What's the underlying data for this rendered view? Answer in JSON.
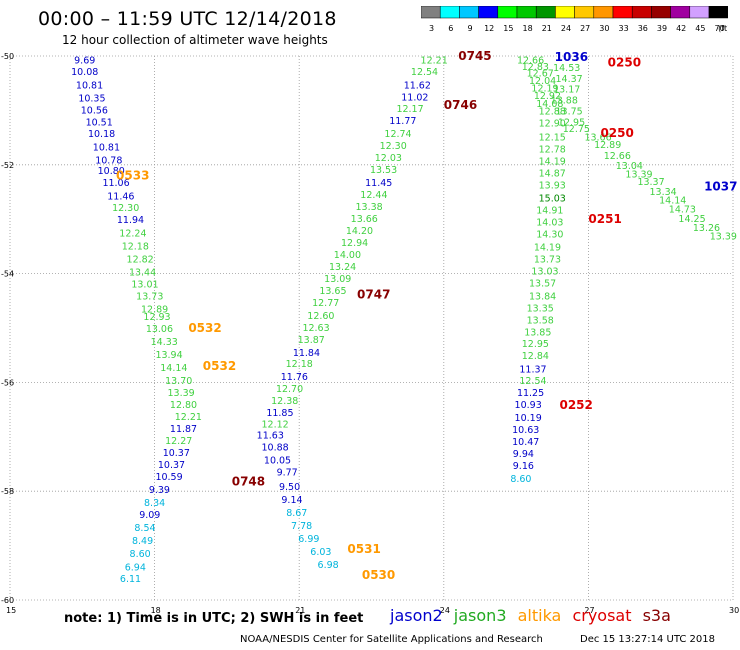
{
  "header": {
    "title": "00:00 – 11:59 UTC 12/14/2018",
    "subtitle": "12 hour collection of altimeter wave heights"
  },
  "colorbar": {
    "labels": [
      "3",
      "6",
      "9",
      "12",
      "15",
      "18",
      "21",
      "24",
      "27",
      "30",
      "33",
      "36",
      "39",
      "42",
      "45",
      "70",
      "(ft)"
    ],
    "colors": [
      "#808080",
      "#00ffff",
      "#00c8ff",
      "#0000ff",
      "#00ff00",
      "#00c800",
      "#009600",
      "#ffff00",
      "#ffc800",
      "#ff9600",
      "#ff0000",
      "#c80000",
      "#960000",
      "#a000a0",
      "#d2a0ff",
      "#000000"
    ]
  },
  "axes": {
    "lon_ticks": [
      "15",
      "18",
      "21",
      "24",
      "27",
      "30"
    ],
    "lat_ticks": [
      "-50",
      "-52",
      "-54",
      "-56",
      "-58",
      "-60"
    ],
    "lon_range": [
      15,
      30
    ],
    "lat_range": [
      -60,
      -50
    ]
  },
  "satellites": {
    "jason2": {
      "name": "jason2",
      "color": "#0000cc"
    },
    "jason3": {
      "name": "jason3",
      "color": "#22aa22"
    },
    "altika": {
      "name": "altika",
      "color": "#ff9900"
    },
    "cryosat": {
      "name": "cryosat",
      "color": "#dd0000"
    },
    "s3a": {
      "name": "s3a",
      "color": "#880000"
    }
  },
  "value_colors": {
    "cyan": "#00b4dc",
    "blue": "#0000c8",
    "green": "#40d040",
    "darkgreen": "#008800"
  },
  "tracks": [
    {
      "id": "t1",
      "points": [
        {
          "lon": 16.55,
          "lat": -50.06,
          "v": "9.69",
          "c": "blue"
        },
        {
          "lon": 16.55,
          "lat": -50.28,
          "v": "10.08",
          "c": "blue"
        },
        {
          "lon": 16.65,
          "lat": -50.52,
          "v": "10.81",
          "c": "blue"
        },
        {
          "lon": 16.7,
          "lat": -50.76,
          "v": "10.35",
          "c": "blue"
        },
        {
          "lon": 16.75,
          "lat": -50.98,
          "v": "10.56",
          "c": "blue"
        },
        {
          "lon": 16.85,
          "lat": -51.2,
          "v": "10.51",
          "c": "blue"
        },
        {
          "lon": 16.9,
          "lat": -51.42,
          "v": "10.18",
          "c": "blue"
        },
        {
          "lon": 17.0,
          "lat": -51.66,
          "v": "10.81",
          "c": "blue"
        },
        {
          "lon": 17.05,
          "lat": -51.9,
          "v": "10.78",
          "c": "blue"
        },
        {
          "lon": 17.1,
          "lat": -52.1,
          "v": "10.80",
          "c": "blue"
        },
        {
          "lon": 17.2,
          "lat": -52.32,
          "v": "11.06",
          "c": "blue"
        },
        {
          "lon": 17.3,
          "lat": -52.56,
          "v": "11.46",
          "c": "blue"
        },
        {
          "lon": 17.4,
          "lat": -52.78,
          "v": "12.30",
          "c": "green"
        },
        {
          "lon": 17.5,
          "lat": -53.0,
          "v": "11.94",
          "c": "blue"
        },
        {
          "lon": 17.55,
          "lat": -53.24,
          "v": "12.24",
          "c": "green"
        },
        {
          "lon": 17.6,
          "lat": -53.48,
          "v": "12.18",
          "c": "green"
        },
        {
          "lon": 17.7,
          "lat": -53.72,
          "v": "12.82",
          "c": "green"
        },
        {
          "lon": 17.75,
          "lat": -53.96,
          "v": "13.44",
          "c": "green"
        },
        {
          "lon": 17.8,
          "lat": -54.18,
          "v": "13.01",
          "c": "green"
        },
        {
          "lon": 17.9,
          "lat": -54.4,
          "v": "13.73",
          "c": "green"
        },
        {
          "lon": 18.0,
          "lat": -54.64,
          "v": "12.89",
          "c": "green"
        },
        {
          "lon": 18.05,
          "lat": -54.78,
          "v": "12.93",
          "c": "green"
        },
        {
          "lon": 18.1,
          "lat": -55.0,
          "v": "13.06",
          "c": "green"
        },
        {
          "lon": 18.2,
          "lat": -55.24,
          "v": "14.33",
          "c": "green"
        },
        {
          "lon": 18.3,
          "lat": -55.48,
          "v": "13.94",
          "c": "green"
        },
        {
          "lon": 18.4,
          "lat": -55.72,
          "v": "14.14",
          "c": "green"
        },
        {
          "lon": 18.5,
          "lat": -55.96,
          "v": "13.70",
          "c": "green"
        },
        {
          "lon": 18.55,
          "lat": -56.18,
          "v": "13.39",
          "c": "green"
        },
        {
          "lon": 18.6,
          "lat": -56.4,
          "v": "12.80",
          "c": "green"
        },
        {
          "lon": 18.7,
          "lat": -56.62,
          "v": "12.21",
          "c": "green"
        },
        {
          "lon": 18.6,
          "lat": -56.84,
          "v": "11.87",
          "c": "blue"
        },
        {
          "lon": 18.5,
          "lat": -57.06,
          "v": "12.27",
          "c": "green"
        },
        {
          "lon": 18.45,
          "lat": -57.28,
          "v": "10.37",
          "c": "blue"
        },
        {
          "lon": 18.35,
          "lat": -57.5,
          "v": "10.37",
          "c": "blue"
        },
        {
          "lon": 18.3,
          "lat": -57.72,
          "v": "10.59",
          "c": "blue"
        },
        {
          "lon": 18.1,
          "lat": -57.96,
          "v": "9.39",
          "c": "blue"
        },
        {
          "lon": 18.0,
          "lat": -58.2,
          "v": "8.34",
          "c": "cyan"
        },
        {
          "lon": 17.9,
          "lat": -58.42,
          "v": "9.09",
          "c": "blue"
        },
        {
          "lon": 17.8,
          "lat": -58.66,
          "v": "8.54",
          "c": "cyan"
        },
        {
          "lon": 17.75,
          "lat": -58.9,
          "v": "8.49",
          "c": "cyan"
        },
        {
          "lon": 17.7,
          "lat": -59.14,
          "v": "8.60",
          "c": "cyan"
        },
        {
          "lon": 17.6,
          "lat": -59.38,
          "v": "6.94",
          "c": "cyan"
        },
        {
          "lon": 17.5,
          "lat": -59.6,
          "v": "6.11",
          "c": "cyan"
        }
      ]
    },
    {
      "id": "t2",
      "points": [
        {
          "lon": 23.8,
          "lat": -50.06,
          "v": "12.21",
          "c": "green"
        },
        {
          "lon": 23.6,
          "lat": -50.28,
          "v": "12.54",
          "c": "green"
        },
        {
          "lon": 23.45,
          "lat": -50.52,
          "v": "11.62",
          "c": "blue"
        },
        {
          "lon": 23.4,
          "lat": -50.74,
          "v": "11.02",
          "c": "blue"
        },
        {
          "lon": 23.3,
          "lat": -50.96,
          "v": "12.17",
          "c": "green"
        },
        {
          "lon": 23.15,
          "lat": -51.18,
          "v": "11.77",
          "c": "blue"
        },
        {
          "lon": 23.05,
          "lat": -51.42,
          "v": "12.74",
          "c": "green"
        },
        {
          "lon": 22.95,
          "lat": -51.64,
          "v": "12.30",
          "c": "green"
        },
        {
          "lon": 22.85,
          "lat": -51.86,
          "v": "12.03",
          "c": "green"
        },
        {
          "lon": 22.75,
          "lat": -52.08,
          "v": "13.53",
          "c": "green"
        },
        {
          "lon": 22.65,
          "lat": -52.32,
          "v": "11.45",
          "c": "blue"
        },
        {
          "lon": 22.55,
          "lat": -52.54,
          "v": "12.44",
          "c": "green"
        },
        {
          "lon": 22.45,
          "lat": -52.76,
          "v": "13.38",
          "c": "green"
        },
        {
          "lon": 22.35,
          "lat": -52.98,
          "v": "13.66",
          "c": "green"
        },
        {
          "lon": 22.25,
          "lat": -53.2,
          "v": "14.20",
          "c": "green"
        },
        {
          "lon": 22.15,
          "lat": -53.42,
          "v": "12.94",
          "c": "green"
        },
        {
          "lon": 22.0,
          "lat": -53.64,
          "v": "14.00",
          "c": "green"
        },
        {
          "lon": 21.9,
          "lat": -53.86,
          "v": "13.24",
          "c": "green"
        },
        {
          "lon": 21.8,
          "lat": -54.08,
          "v": "13.09",
          "c": "green"
        },
        {
          "lon": 21.7,
          "lat": -54.3,
          "v": "13.65",
          "c": "green"
        },
        {
          "lon": 21.55,
          "lat": -54.52,
          "v": "12.77",
          "c": "green"
        },
        {
          "lon": 21.45,
          "lat": -54.76,
          "v": "12.60",
          "c": "green"
        },
        {
          "lon": 21.35,
          "lat": -54.98,
          "v": "12.63",
          "c": "green"
        },
        {
          "lon": 21.25,
          "lat": -55.2,
          "v": "13.87",
          "c": "green"
        },
        {
          "lon": 21.15,
          "lat": -55.44,
          "v": "11.84",
          "c": "blue"
        },
        {
          "lon": 21.0,
          "lat": -55.64,
          "v": "12.18",
          "c": "green"
        },
        {
          "lon": 20.9,
          "lat": -55.88,
          "v": "11.76",
          "c": "blue"
        },
        {
          "lon": 20.8,
          "lat": -56.1,
          "v": "12.70",
          "c": "green"
        },
        {
          "lon": 20.7,
          "lat": -56.32,
          "v": "12.38",
          "c": "green"
        },
        {
          "lon": 20.6,
          "lat": -56.54,
          "v": "11.85",
          "c": "blue"
        },
        {
          "lon": 20.5,
          "lat": -56.76,
          "v": "12.12",
          "c": "green"
        },
        {
          "lon": 20.4,
          "lat": -56.96,
          "v": "11.63",
          "c": "blue"
        },
        {
          "lon": 20.5,
          "lat": -57.18,
          "v": "10.88",
          "c": "blue"
        },
        {
          "lon": 20.55,
          "lat": -57.42,
          "v": "10.05",
          "c": "blue"
        },
        {
          "lon": 20.75,
          "lat": -57.64,
          "v": "9.77",
          "c": "blue"
        },
        {
          "lon": 20.8,
          "lat": -57.9,
          "v": "9.50",
          "c": "blue"
        },
        {
          "lon": 20.85,
          "lat": -58.14,
          "v": "9.14",
          "c": "blue"
        },
        {
          "lon": 20.95,
          "lat": -58.38,
          "v": "8.67",
          "c": "cyan"
        },
        {
          "lon": 21.05,
          "lat": -58.62,
          "v": "7.78",
          "c": "cyan"
        },
        {
          "lon": 21.2,
          "lat": -58.86,
          "v": "6.99",
          "c": "cyan"
        },
        {
          "lon": 21.45,
          "lat": -59.1,
          "v": "6.03",
          "c": "cyan"
        },
        {
          "lon": 21.6,
          "lat": -59.34,
          "v": "6.98",
          "c": "cyan"
        }
      ]
    },
    {
      "id": "t3",
      "points": [
        {
          "lon": 25.8,
          "lat": -50.06,
          "v": "12.66",
          "c": "green"
        },
        {
          "lon": 25.9,
          "lat": -50.18,
          "v": "12.83",
          "c": "green"
        },
        {
          "lon": 26.0,
          "lat": -50.3,
          "v": "12.67",
          "c": "green"
        },
        {
          "lon": 26.05,
          "lat": -50.44,
          "v": "12.04",
          "c": "green"
        },
        {
          "lon": 26.1,
          "lat": -50.58,
          "v": "12.19",
          "c": "green"
        },
        {
          "lon": 26.15,
          "lat": -50.72,
          "v": "12.92",
          "c": "green"
        },
        {
          "lon": 26.2,
          "lat": -50.86,
          "v": "14.08",
          "c": "green"
        },
        {
          "lon": 26.25,
          "lat": -51.0,
          "v": "12.88",
          "c": "green"
        },
        {
          "lon": 26.25,
          "lat": -51.22,
          "v": "12.90",
          "c": "green"
        },
        {
          "lon": 26.25,
          "lat": -51.48,
          "v": "12.15",
          "c": "green"
        },
        {
          "lon": 26.25,
          "lat": -51.7,
          "v": "12.78",
          "c": "green"
        },
        {
          "lon": 26.25,
          "lat": -51.92,
          "v": "14.19",
          "c": "green"
        },
        {
          "lon": 26.25,
          "lat": -52.14,
          "v": "14.87",
          "c": "green"
        },
        {
          "lon": 26.25,
          "lat": -52.36,
          "v": "13.93",
          "c": "green"
        },
        {
          "lon": 26.25,
          "lat": -52.6,
          "v": "15.03",
          "c": "darkgreen"
        },
        {
          "lon": 26.2,
          "lat": -52.82,
          "v": "14.91",
          "c": "green"
        },
        {
          "lon": 26.2,
          "lat": -53.04,
          "v": "14.03",
          "c": "green"
        },
        {
          "lon": 26.2,
          "lat": -53.26,
          "v": "14.30",
          "c": "green"
        },
        {
          "lon": 26.15,
          "lat": -53.5,
          "v": "14.19",
          "c": "green"
        },
        {
          "lon": 26.15,
          "lat": -53.72,
          "v": "13.73",
          "c": "green"
        },
        {
          "lon": 26.1,
          "lat": -53.94,
          "v": "13.03",
          "c": "green"
        },
        {
          "lon": 26.05,
          "lat": -54.16,
          "v": "13.57",
          "c": "green"
        },
        {
          "lon": 26.05,
          "lat": -54.4,
          "v": "13.84",
          "c": "green"
        },
        {
          "lon": 26.0,
          "lat": -54.62,
          "v": "13.35",
          "c": "green"
        },
        {
          "lon": 26.0,
          "lat": -54.84,
          "v": "13.58",
          "c": "green"
        },
        {
          "lon": 25.95,
          "lat": -55.06,
          "v": "13.85",
          "c": "green"
        },
        {
          "lon": 25.9,
          "lat": -55.28,
          "v": "12.95",
          "c": "green"
        },
        {
          "lon": 25.9,
          "lat": -55.5,
          "v": "12.84",
          "c": "green"
        },
        {
          "lon": 25.85,
          "lat": -55.74,
          "v": "11.37",
          "c": "blue"
        },
        {
          "lon": 25.85,
          "lat": -55.96,
          "v": "12.54",
          "c": "green"
        },
        {
          "lon": 25.8,
          "lat": -56.18,
          "v": "11.25",
          "c": "blue"
        },
        {
          "lon": 25.75,
          "lat": -56.4,
          "v": "10.93",
          "c": "blue"
        },
        {
          "lon": 25.75,
          "lat": -56.64,
          "v": "10.19",
          "c": "blue"
        },
        {
          "lon": 25.7,
          "lat": -56.86,
          "v": "10.63",
          "c": "blue"
        },
        {
          "lon": 25.7,
          "lat": -57.08,
          "v": "10.47",
          "c": "blue"
        },
        {
          "lon": 25.65,
          "lat": -57.3,
          "v": "9.94",
          "c": "blue"
        },
        {
          "lon": 25.65,
          "lat": -57.52,
          "v": "9.16",
          "c": "blue"
        },
        {
          "lon": 25.6,
          "lat": -57.76,
          "v": "8.60",
          "c": "cyan"
        }
      ]
    },
    {
      "id": "t4",
      "points": [
        {
          "lon": 26.55,
          "lat": -50.2,
          "v": "14.53",
          "c": "green"
        },
        {
          "lon": 26.6,
          "lat": -50.4,
          "v": "14.37",
          "c": "green"
        },
        {
          "lon": 26.55,
          "lat": -50.6,
          "v": "13.17",
          "c": "green"
        },
        {
          "lon": 26.5,
          "lat": -50.8,
          "v": "13.88",
          "c": "green"
        },
        {
          "lon": 26.6,
          "lat": -51.0,
          "v": "13.75",
          "c": "green"
        },
        {
          "lon": 26.65,
          "lat": -51.2,
          "v": "12.95",
          "c": "green"
        },
        {
          "lon": 26.75,
          "lat": -51.32,
          "v": "12.75",
          "c": "green"
        }
      ]
    },
    {
      "id": "t5",
      "points": [
        {
          "lon": 27.2,
          "lat": -51.48,
          "v": "13.66",
          "c": "green"
        },
        {
          "lon": 27.4,
          "lat": -51.62,
          "v": "12.89",
          "c": "green"
        },
        {
          "lon": 27.6,
          "lat": -51.82,
          "v": "12.66",
          "c": "green"
        },
        {
          "lon": 27.85,
          "lat": -52.0,
          "v": "13.04",
          "c": "green"
        },
        {
          "lon": 28.05,
          "lat": -52.16,
          "v": "13.39",
          "c": "green"
        },
        {
          "lon": 28.3,
          "lat": -52.3,
          "v": "13.37",
          "c": "green"
        },
        {
          "lon": 28.55,
          "lat": -52.48,
          "v": "13.34",
          "c": "green"
        },
        {
          "lon": 28.75,
          "lat": -52.64,
          "v": "14.14",
          "c": "green"
        },
        {
          "lon": 28.95,
          "lat": -52.8,
          "v": "14.73",
          "c": "green"
        },
        {
          "lon": 29.15,
          "lat": -52.98,
          "v": "14.25",
          "c": "green"
        },
        {
          "lon": 29.45,
          "lat": -53.14,
          "v": "13.26",
          "c": "green"
        },
        {
          "lon": 29.8,
          "lat": -53.3,
          "v": "13.39",
          "c": "green"
        }
      ]
    }
  ],
  "pass_labels": [
    {
      "lon": 24.3,
      "lat": -50.0,
      "text": "0745",
      "sat": "s3a"
    },
    {
      "lon": 24.0,
      "lat": -50.9,
      "text": "0746",
      "sat": "s3a"
    },
    {
      "lon": 22.2,
      "lat": -54.38,
      "text": "0747",
      "sat": "s3a"
    },
    {
      "lon": 19.6,
      "lat": -57.82,
      "text": "0748",
      "sat": "s3a"
    },
    {
      "lon": 17.2,
      "lat": -52.2,
      "text": "0533",
      "sat": "altika"
    },
    {
      "lon": 18.7,
      "lat": -55.0,
      "text": "0532",
      "sat": "altika"
    },
    {
      "lon": 19.0,
      "lat": -55.7,
      "text": "0532",
      "sat": "altika"
    },
    {
      "lon": 22.0,
      "lat": -59.06,
      "text": "0531",
      "sat": "altika"
    },
    {
      "lon": 22.3,
      "lat": -59.54,
      "text": "0530",
      "sat": "altika"
    },
    {
      "lon": 26.3,
      "lat": -50.02,
      "text": "1036",
      "sat": "jason2"
    },
    {
      "lon": 29.4,
      "lat": -52.4,
      "text": "1037",
      "sat": "jason2"
    },
    {
      "lon": 27.4,
      "lat": -50.12,
      "text": "0250",
      "sat": "cryosat"
    },
    {
      "lon": 27.25,
      "lat": -51.42,
      "text": "0250",
      "sat": "cryosat"
    },
    {
      "lon": 27.0,
      "lat": -53.0,
      "text": "0251",
      "sat": "cryosat"
    },
    {
      "lon": 26.4,
      "lat": -56.42,
      "text": "0252",
      "sat": "cryosat"
    }
  ],
  "footer": {
    "note": "note:  1) Time is in UTC;  2) SWH is in feet",
    "credit": "NOAA/NESDIS Center for Satellite Applications and Research",
    "timestamp": "Dec 15 13:27:14 UTC 2018"
  }
}
